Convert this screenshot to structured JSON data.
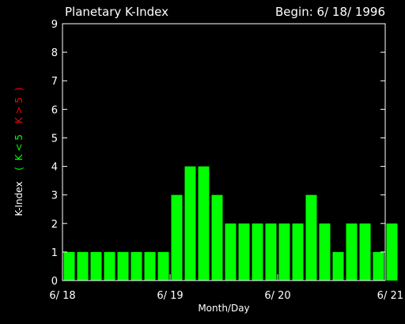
{
  "chart_data": {
    "type": "bar",
    "title": "Planetary K-Index",
    "subtitle": "Begin: 6/ 18/ 1996",
    "xlabel": "Month/Day",
    "ylabel_parts": {
      "main": "K-Index",
      "open_paren": "(",
      "green_label": "K < 5",
      "red_label": "K > 5",
      "close_paren": ")"
    },
    "x_ticks": [
      "6/ 18",
      "6/ 19",
      "6/ 20",
      "6/ 21"
    ],
    "y_ticks": [
      "0",
      "1",
      "2",
      "3",
      "4",
      "5",
      "6",
      "7",
      "8",
      "9"
    ],
    "ylim": [
      0,
      9
    ],
    "bars_per_day": 8,
    "values": [
      1,
      1,
      1,
      1,
      1,
      1,
      1,
      1,
      3,
      4,
      4,
      3,
      2,
      2,
      2,
      2,
      2,
      2,
      3,
      2,
      1,
      2,
      2,
      1,
      2
    ],
    "colors": {
      "background": "#000000",
      "axis": "#ffffff",
      "bar_low": "#00ff00",
      "bar_high": "#ff0000",
      "label_green": "#00ff00",
      "label_red": "#ff0000"
    },
    "threshold": 5
  }
}
